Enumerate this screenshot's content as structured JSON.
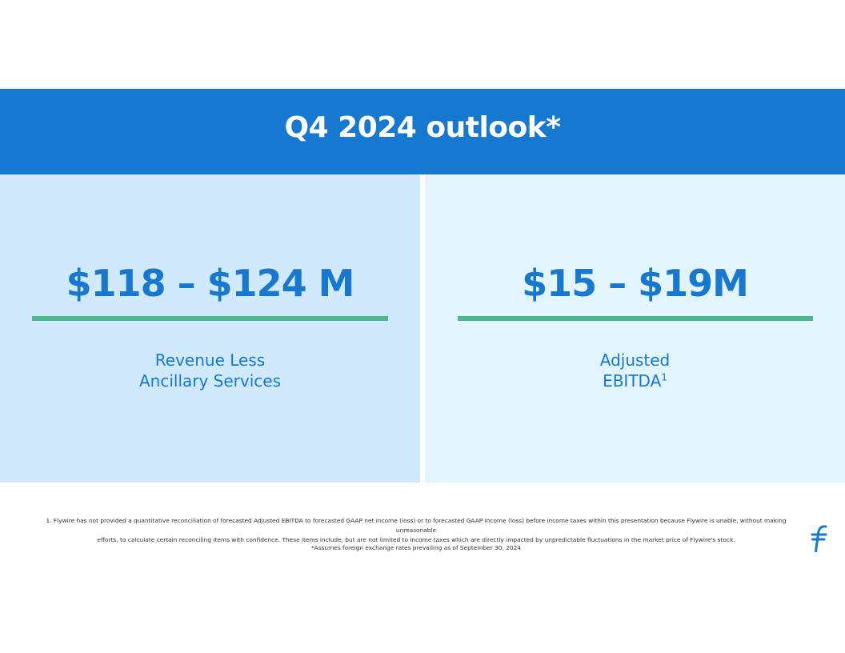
{
  "header": {
    "title": "Q4 2024 outlook*"
  },
  "metrics": [
    {
      "value": "$118 – $124 M",
      "label_line1": "Revenue Less",
      "label_line2": "Ancillary Services"
    },
    {
      "value": "$15 – $19M",
      "label_line1": "Adjusted",
      "label_line2": "EBITDA",
      "label_superscript": "1"
    }
  ],
  "footnotes": {
    "note1_line1": "1. Flywire has not provided a quantitative reconciliation of forecasted Adjusted EBITDA to forecasted GAAP net income (loss) or to forecasted GAAP income (loss) before income taxes within this presentation because Flywire is unable, without making unreasonable",
    "note1_line2": "efforts, to calculate certain reconciling items with confidence. These items include, but are not limited to income taxes which are directly impacted by unpredictable fluctuations in the market price of Flywire's stock.",
    "assumption": "*Assumes foreign exchange rates prevailing as of September 30, 2024"
  },
  "logo": {
    "icon": "flywire-logo-icon"
  },
  "colors": {
    "brand_blue": "#1778d2",
    "accent_green": "#46ba8c",
    "panel_left": "#d0e9fd",
    "panel_right": "#e2f4fd"
  }
}
